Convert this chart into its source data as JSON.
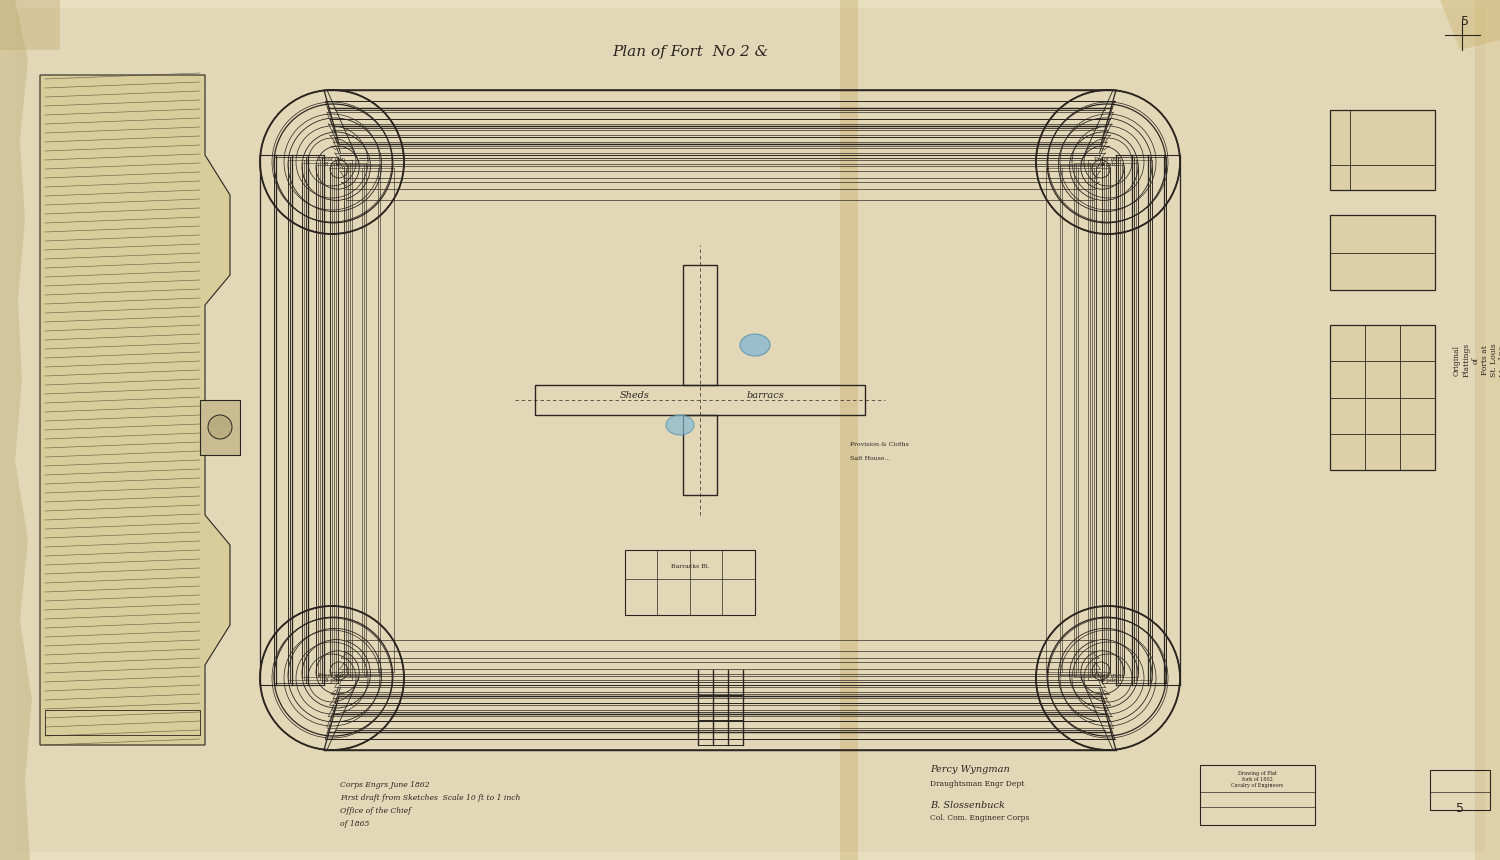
{
  "title": "Plan of Fort  No 2 &",
  "bg_color": "#e8dfc0",
  "paper_color": "#e0d4b0",
  "inner_color": "#ddd0aa",
  "line_color": "#2a2520",
  "hatch_color": "#5a4a35",
  "blue_color": "#7ab0c8",
  "anno_color": "#3a3025",
  "stain_color": "#b8904a",
  "fig_width": 15.0,
  "fig_height": 8.6,
  "dpi": 100,
  "title_text": "Plan of Fort  No 2 &",
  "bottom_text_1": "Corps Engrs June 1862",
  "bottom_text_2": "First draft from Sketches  Scale 10 ft to 1 inch",
  "bottom_text_3": "Office of the Chief",
  "bottom_text_4": "of 1865",
  "sig_text_1": "Percy Wyngman",
  "sig_text_2": "Draughtsman Engr Dept",
  "sig_text_3": "B. Slossenbuck",
  "sig_text_4": "Col. Com. Engineer Corps"
}
